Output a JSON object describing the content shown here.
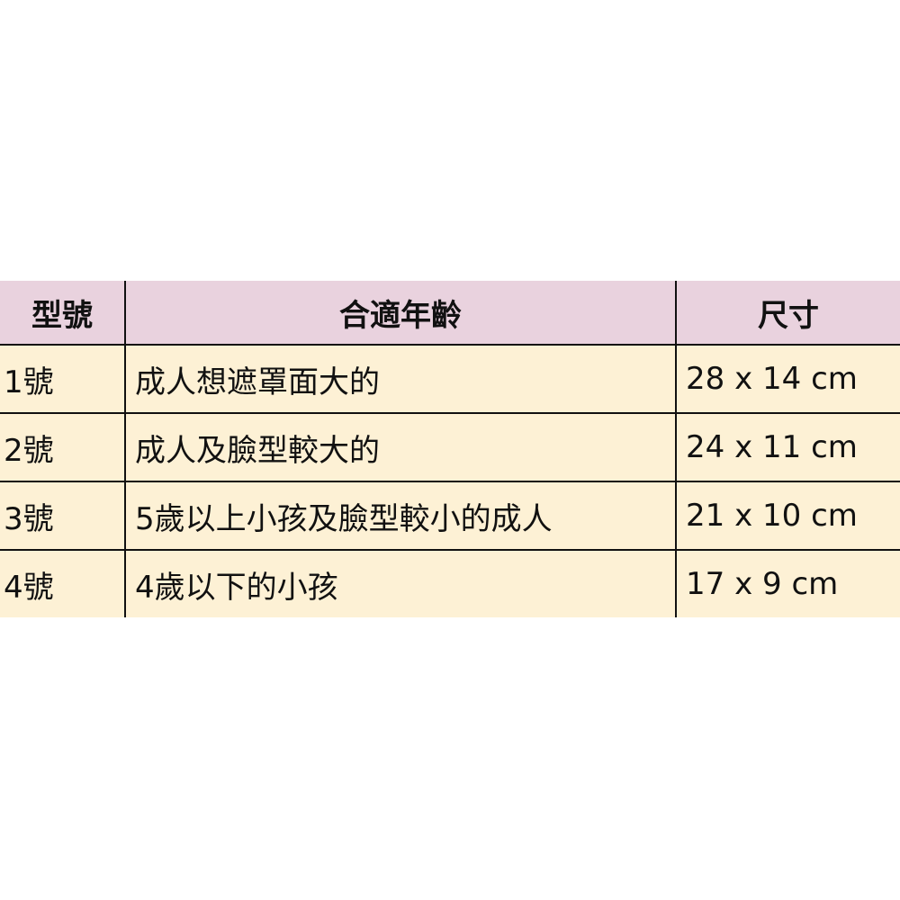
{
  "table": {
    "headers": [
      "型號",
      "合適年齡",
      "尺寸"
    ],
    "rows": [
      [
        "1號",
        "成人想遮罩面大的",
        "28 x 14 cm"
      ],
      [
        "2號",
        "成人及臉型較大的",
        "24 x 11 cm"
      ],
      [
        "3號",
        "5歲以上小孩及臉型較小的成人",
        "21 x 10 cm"
      ],
      [
        "4號",
        "4歲以下的小孩",
        "17 x 9 cm"
      ]
    ]
  },
  "colors": {
    "header_bg": "#e9d2de",
    "row_bg": "#fdf1d5"
  }
}
